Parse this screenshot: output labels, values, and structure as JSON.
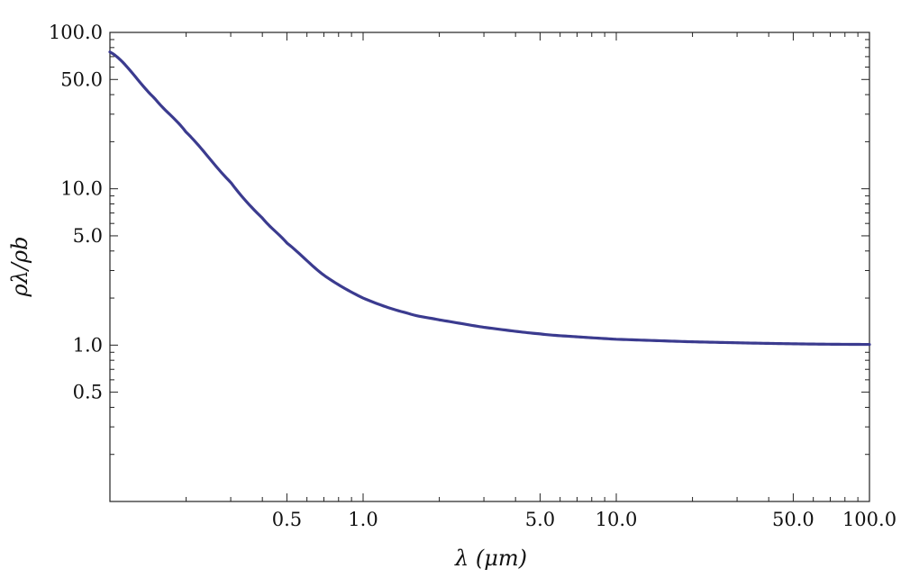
{
  "chart_data": {
    "type": "line",
    "title": "",
    "xlabel": "λ (μm)",
    "ylabel": "ρλ/ρb",
    "x_scale": "log",
    "y_scale": "log",
    "xlim": [
      0.1,
      100
    ],
    "ylim": [
      0.1,
      100
    ],
    "x_tick_labels": [
      "0.5",
      "1.0",
      "5.0",
      "10.0",
      "50.0",
      "100.0"
    ],
    "x_tick_values": [
      0.5,
      1,
      5,
      10,
      50,
      100
    ],
    "y_tick_labels": [
      "100.0",
      "50.0",
      "10.0",
      "5.0",
      "1.0",
      "0.5"
    ],
    "y_tick_values": [
      100,
      50,
      10,
      5,
      1,
      0.5
    ],
    "grid": false,
    "colors": {
      "line": "#3b3b8f"
    },
    "series": [
      {
        "x": [
          0.1,
          0.15,
          0.2,
          0.3,
          0.4,
          0.5,
          0.7,
          1.0,
          1.5,
          2.0,
          3.0,
          5.0,
          7.0,
          10.0,
          20.0,
          50.0,
          100.0
        ],
        "values": [
          75,
          38,
          23,
          11,
          6.5,
          4.5,
          2.8,
          2.0,
          1.6,
          1.45,
          1.3,
          1.18,
          1.13,
          1.09,
          1.05,
          1.02,
          1.01
        ]
      }
    ]
  }
}
